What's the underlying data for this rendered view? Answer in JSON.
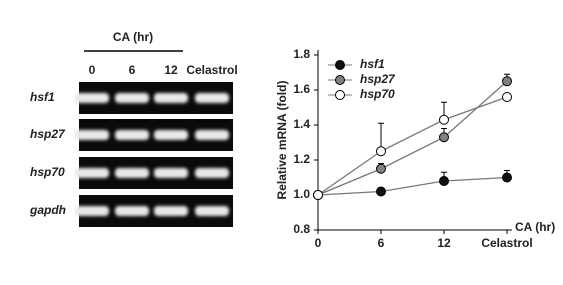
{
  "gel": {
    "header": "CA (hr)",
    "lanes": [
      "0",
      "6",
      "12",
      "Celastrol"
    ],
    "rows": [
      "hsf1",
      "hsp27",
      "hsp70",
      "gapdh"
    ]
  },
  "chart_data": {
    "type": "line",
    "ylabel": "Relative mRNA (fold)",
    "xlabel": "CA (hr)",
    "categories": [
      "0",
      "6",
      "12",
      "Celastrol"
    ],
    "ylim": [
      0.8,
      1.8
    ],
    "yticks": [
      {
        "value": 0.8,
        "label": "0.8"
      },
      {
        "value": 1.0,
        "label": "1.0"
      },
      {
        "value": 1.2,
        "label": "1.2"
      },
      {
        "value": 1.4,
        "label": "1.4"
      },
      {
        "value": 1.6,
        "label": "1.6"
      },
      {
        "value": 1.8,
        "label": "1.8"
      }
    ],
    "legend": "upper-left",
    "series": [
      {
        "name": "hsf1",
        "color": "#111111",
        "values": [
          1.0,
          1.02,
          1.08,
          1.1
        ],
        "errors": [
          0,
          0.02,
          0.05,
          0.04
        ]
      },
      {
        "name": "hsp27",
        "color": "#808080",
        "values": [
          1.0,
          1.15,
          1.33,
          1.65
        ],
        "errors": [
          0,
          0.03,
          0.05,
          0.04
        ]
      },
      {
        "name": "hsp70",
        "color": "#ffffff",
        "values": [
          1.0,
          1.25,
          1.43,
          1.56
        ],
        "errors": [
          0,
          0.16,
          0.1,
          0
        ]
      }
    ]
  }
}
